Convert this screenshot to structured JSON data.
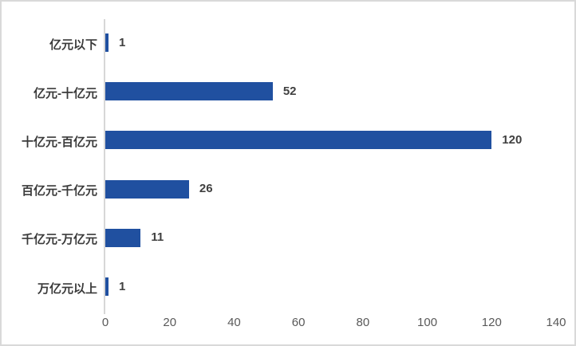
{
  "chart_data": {
    "type": "bar",
    "orientation": "horizontal",
    "title": "",
    "xlabel": "",
    "ylabel": "",
    "categories": [
      "亿元以下",
      "亿元-十亿元",
      "十亿元-百亿元",
      "百亿元-千亿元",
      "千亿元-万亿元",
      "万亿元以上"
    ],
    "values": [
      1,
      52,
      120,
      26,
      11,
      1
    ],
    "value_labels": [
      "1",
      "52",
      "120",
      "26",
      "11",
      "1"
    ],
    "xlim": [
      0,
      140
    ],
    "xticks": [
      0,
      20,
      40,
      60,
      80,
      100,
      120,
      140
    ],
    "xtick_labels": [
      "0",
      "20",
      "40",
      "60",
      "80",
      "100",
      "120",
      "140"
    ],
    "grid": false,
    "legend": "none",
    "bar_color": "#2050a0",
    "axis_line_color": "#d7d7d7",
    "category_text_color": "#3a3a3a",
    "value_text_color": "#404040",
    "tick_text_color": "#595959",
    "frame_border_color": "#d9d9d9",
    "background_color": "#ffffff"
  }
}
